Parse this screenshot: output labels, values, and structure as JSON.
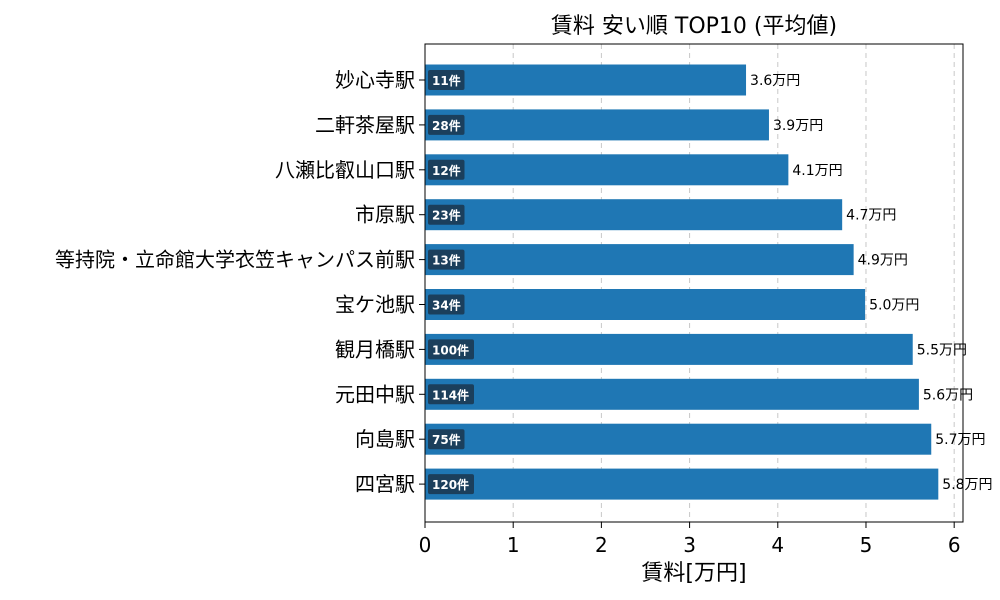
{
  "chart_data": {
    "type": "bar",
    "orientation": "horizontal",
    "title": "賃料 安い順 TOP10 (平均値)",
    "xlabel": "賃料[万円]",
    "ylabel": "",
    "xlim": [
      0,
      6.1
    ],
    "xticks": [
      "0",
      "1",
      "2",
      "3",
      "4",
      "5",
      "6"
    ],
    "grid": "x-dashed",
    "bar_color": "#1f77b4",
    "badge_color": "#1b3f5c",
    "categories": [
      "妙心寺駅",
      "二軒茶屋駅",
      "八瀬比叡山口駅",
      "市原駅",
      "等持院・立命館大学衣笠キャンパス前駅",
      "宝ケ池駅",
      "観月橋駅",
      "元田中駅",
      "向島駅",
      "四宮駅"
    ],
    "values": [
      3.64,
      3.9,
      4.12,
      4.73,
      4.86,
      4.99,
      5.53,
      5.6,
      5.74,
      5.82
    ],
    "value_labels": [
      "3.6万円",
      "3.9万円",
      "4.1万円",
      "4.7万円",
      "4.9万円",
      "5.0万円",
      "5.5万円",
      "5.6万円",
      "5.7万円",
      "5.8万円"
    ],
    "counts": [
      "11件",
      "28件",
      "12件",
      "23件",
      "13件",
      "34件",
      "100件",
      "114件",
      "75件",
      "120件"
    ]
  }
}
